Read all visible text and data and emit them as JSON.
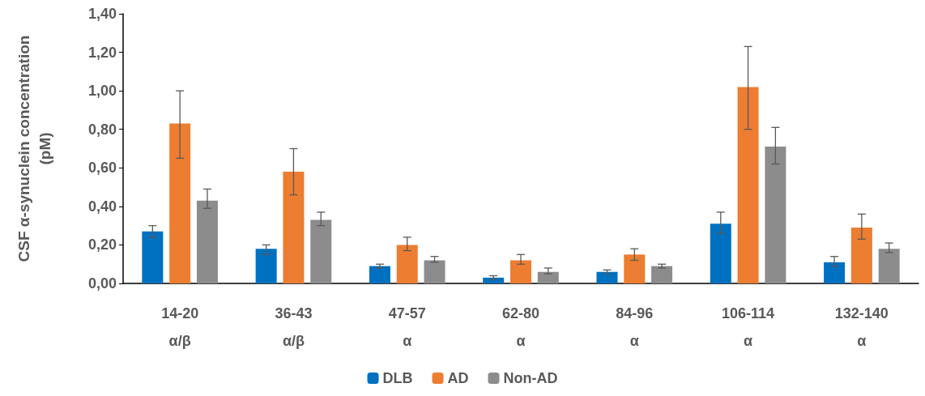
{
  "chart_data": {
    "type": "bar",
    "ylabel": "CSF α-synuclein concentration\n(pM)",
    "categories": [
      "14-20\nα/β",
      "36-43\nα/β",
      "47-57\nα",
      "62-80\nα",
      "84-96\nα",
      "106-114\nα",
      "132-140\nα"
    ],
    "series": [
      {
        "name": "DLB",
        "color": "#0070c0",
        "values": [
          0.27,
          0.18,
          0.09,
          0.03,
          0.06,
          0.31,
          0.11
        ],
        "errors": [
          [
            0.24,
            0.3
          ],
          [
            0.15,
            0.2
          ],
          [
            0.08,
            0.1
          ],
          [
            0.02,
            0.04
          ],
          [
            0.05,
            0.07
          ],
          [
            0.26,
            0.37
          ],
          [
            0.09,
            0.14
          ]
        ]
      },
      {
        "name": "AD",
        "color": "#ed7d31",
        "values": [
          0.83,
          0.58,
          0.2,
          0.12,
          0.15,
          1.02,
          0.29
        ],
        "errors": [
          [
            0.65,
            1.0
          ],
          [
            0.46,
            0.7
          ],
          [
            0.17,
            0.24
          ],
          [
            0.1,
            0.15
          ],
          [
            0.12,
            0.18
          ],
          [
            0.8,
            1.23
          ],
          [
            0.23,
            0.36
          ]
        ]
      },
      {
        "name": "Non-AD",
        "color": "#8c8c8c",
        "values": [
          0.43,
          0.33,
          0.12,
          0.06,
          0.09,
          0.71,
          0.18
        ],
        "errors": [
          [
            0.39,
            0.49
          ],
          [
            0.3,
            0.37
          ],
          [
            0.11,
            0.14
          ],
          [
            0.05,
            0.08
          ],
          [
            0.08,
            0.1
          ],
          [
            0.62,
            0.81
          ],
          [
            0.16,
            0.21
          ]
        ]
      }
    ],
    "ylim": [
      0,
      1.4
    ],
    "yticks": [
      {
        "value": 0,
        "label": "0,00"
      },
      {
        "value": 0.2,
        "label": "0,20"
      },
      {
        "value": 0.4,
        "label": "0,40"
      },
      {
        "value": 0.6,
        "label": "0,60"
      },
      {
        "value": 0.8,
        "label": "0,80"
      },
      {
        "value": 1.0,
        "label": "1,00"
      },
      {
        "value": 1.2,
        "label": "1,20"
      },
      {
        "value": 1.4,
        "label": "1,40"
      }
    ],
    "grid": false,
    "legend": "bottom"
  }
}
